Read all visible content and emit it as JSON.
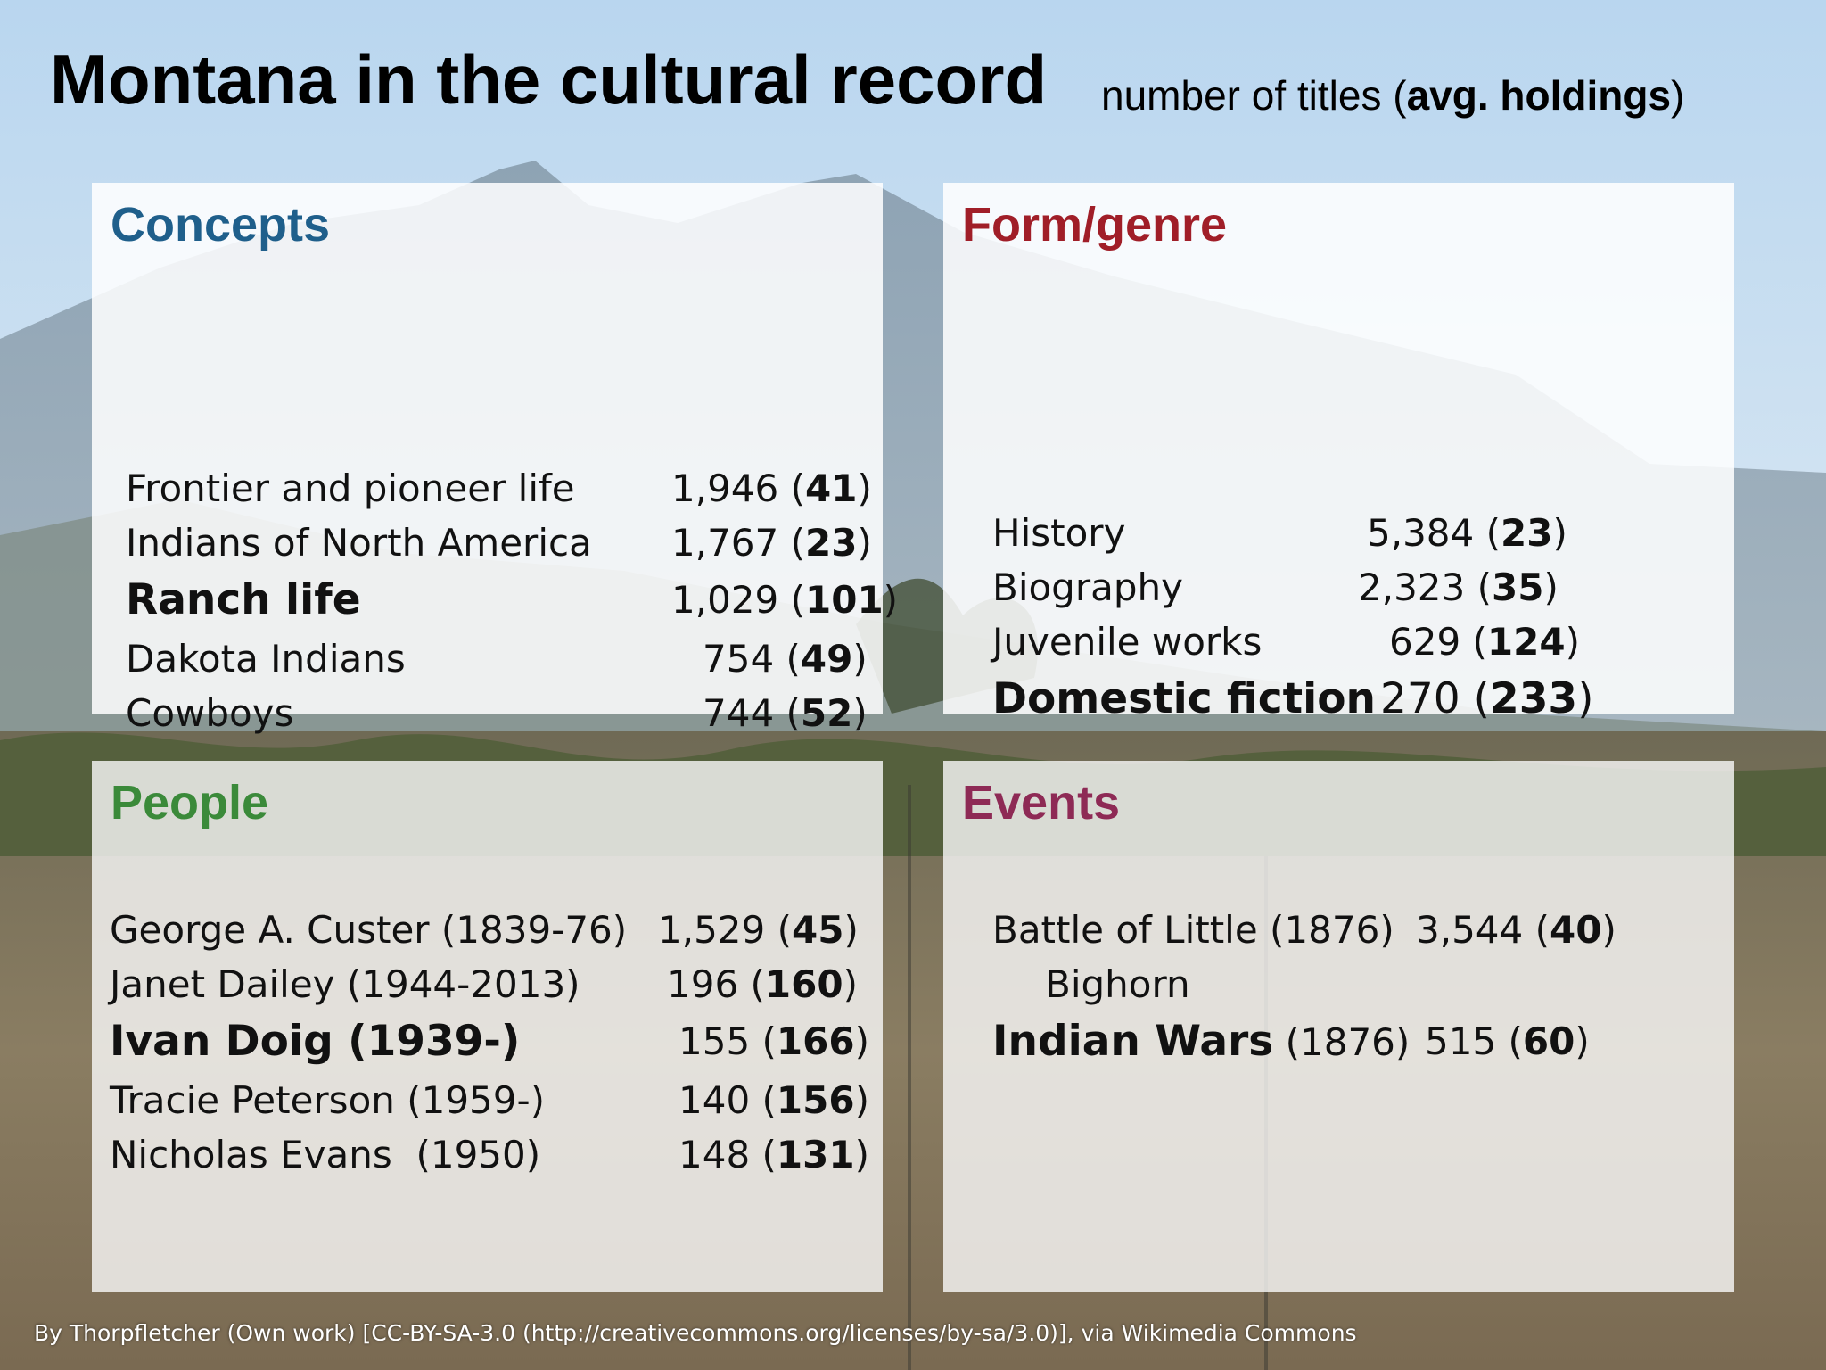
{
  "header": {
    "title": "Montana in the cultural record",
    "subtitle_prefix": "number of titles (",
    "subtitle_bold": "avg. holdings",
    "subtitle_suffix": ")"
  },
  "colors": {
    "concepts": "#1f5f8b",
    "form_genre": "#a01e28",
    "people": "#3b8a3a",
    "events": "#8e2a55"
  },
  "panels": {
    "concepts": {
      "title": "Concepts",
      "rows": [
        {
          "label": "Frontier and pioneer life",
          "count": "1,946",
          "avg": "41",
          "emphasis": false
        },
        {
          "label": "Indians of North America",
          "count": "1,767",
          "avg": "23",
          "emphasis": false
        },
        {
          "label": "Ranch life",
          "count": "1,029",
          "avg": "101",
          "emphasis": true
        },
        {
          "label": "Dakota Indians",
          "count": "754",
          "avg": "49",
          "emphasis": false
        },
        {
          "label": "Cowboys",
          "count": "744",
          "avg": "52",
          "emphasis": false
        }
      ]
    },
    "form_genre": {
      "title": "Form/genre",
      "rows": [
        {
          "label": "History",
          "count": "5,384",
          "avg": "23",
          "emphasis": false
        },
        {
          "label": "Biography",
          "count": "2,323",
          "avg": "35",
          "emphasis": false
        },
        {
          "label": "Juvenile works",
          "count": "629",
          "avg": "124",
          "emphasis": false
        },
        {
          "label": "Domestic fiction",
          "count": "270",
          "avg": "233",
          "emphasis": true
        }
      ]
    },
    "people": {
      "title": "People",
      "rows": [
        {
          "label": "George A. Custer (1839-76)",
          "count": "1,529",
          "avg": "45",
          "emphasis": false
        },
        {
          "label": "Janet Dailey (1944-2013)",
          "count": "196",
          "avg": "160",
          "emphasis": false
        },
        {
          "label": "Ivan Doig (1939-)",
          "count": "155",
          "avg": "166",
          "emphasis": true
        },
        {
          "label": "Tracie Peterson (1959-)",
          "count": "140",
          "avg": "156",
          "emphasis": false
        },
        {
          "label": "Nicholas Evans  (1950)",
          "count": "148",
          "avg": "131",
          "emphasis": false
        }
      ]
    },
    "events": {
      "title": "Events",
      "rows": [
        {
          "label": "Battle of Little (1876)",
          "label_line2": "Bighorn",
          "count": "3,544",
          "avg": "40",
          "emphasis": false
        },
        {
          "label_bold": "Indian Wars",
          "label_rest": " (1876)",
          "count": "515",
          "avg": "60",
          "emphasis": true
        }
      ]
    }
  },
  "footer": {
    "credit": "By Thorpfletcher (Own work) [CC-BY-SA-3.0 (http://creativecommons.org/licenses/by-sa/3.0)], via Wikimedia Commons"
  }
}
